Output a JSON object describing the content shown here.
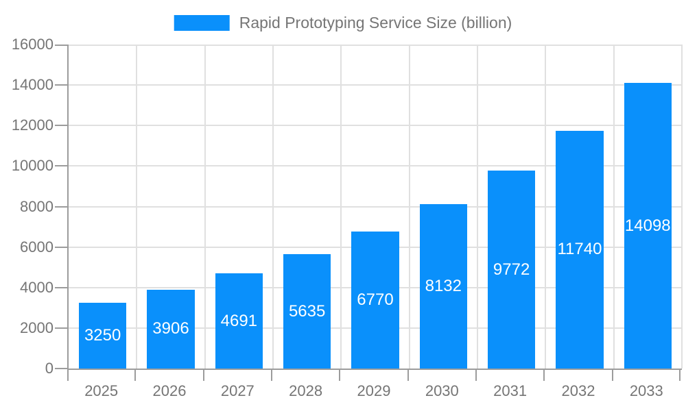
{
  "chart_data": {
    "type": "bar",
    "legend": {
      "label": "Rapid Prototyping Service Size (billion)",
      "position": "top"
    },
    "categories": [
      "2025",
      "2026",
      "2027",
      "2028",
      "2029",
      "2030",
      "2031",
      "2032",
      "2033"
    ],
    "values": [
      3250,
      3906,
      4691,
      5635,
      6770,
      8132,
      9772,
      11740,
      14098
    ],
    "xlabel": "",
    "ylabel": "",
    "ylim": [
      0,
      16000
    ],
    "yticks": [
      0,
      2000,
      4000,
      6000,
      8000,
      10000,
      12000,
      14000,
      16000
    ],
    "grid": true,
    "bar_labels_visible": true,
    "colors": {
      "bar": "#0a90fb",
      "bar_label": "#ffffff",
      "axis": "#9c9c9c",
      "grid": "#e0e0e0",
      "text": "#757575",
      "background": "#ffffff"
    }
  }
}
